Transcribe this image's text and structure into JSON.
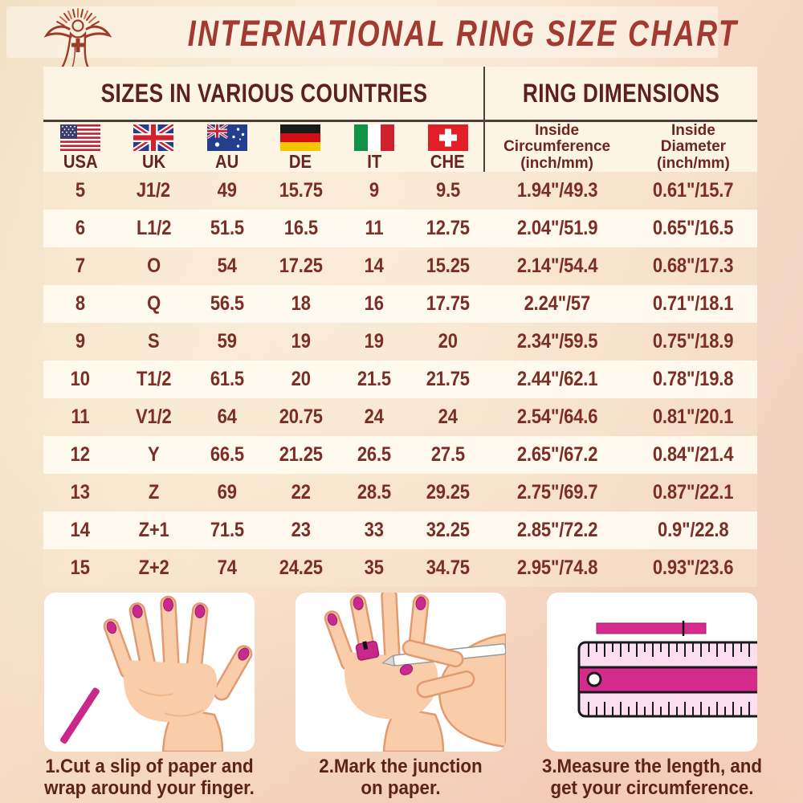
{
  "header": {
    "title": "INTERNATIONAL RING SIZE CHART",
    "logo_icon": "jesus-logo-icon"
  },
  "table": {
    "section_titles": {
      "countries": "SIZES IN VARIOUS COUNTRIES",
      "dimensions": "RING DIMENSIONS"
    },
    "columns": [
      {
        "key": "usa",
        "label": "USA",
        "flag": "usa-flag-icon"
      },
      {
        "key": "uk",
        "label": "UK",
        "flag": "uk-flag-icon"
      },
      {
        "key": "au",
        "label": "AU",
        "flag": "australia-flag-icon"
      },
      {
        "key": "de",
        "label": "DE",
        "flag": "germany-flag-icon"
      },
      {
        "key": "it",
        "label": "IT",
        "flag": "italy-flag-icon"
      },
      {
        "key": "che",
        "label": "CHE",
        "flag": "switzerland-flag-icon"
      },
      {
        "key": "inside_circumference",
        "label": "Inside Circumference (inch/mm)",
        "lines": [
          "Inside",
          "Circumference",
          "(inch/mm)"
        ]
      },
      {
        "key": "inside_diameter",
        "label": "Inside Diameter (inch/mm)",
        "lines": [
          "Inside",
          "Diameter",
          "(inch/mm)"
        ]
      }
    ],
    "rows": [
      [
        "5",
        "J1/2",
        "49",
        "15.75",
        "9",
        "9.5",
        "1.94\"/49.3",
        "0.61\"/15.7"
      ],
      [
        "6",
        "L1/2",
        "51.5",
        "16.5",
        "11",
        "12.75",
        "2.04\"/51.9",
        "0.65\"/16.5"
      ],
      [
        "7",
        "O",
        "54",
        "17.25",
        "14",
        "15.25",
        "2.14\"/54.4",
        "0.68\"/17.3"
      ],
      [
        "8",
        "Q",
        "56.5",
        "18",
        "16",
        "17.75",
        "2.24\"/57",
        "0.71\"/18.1"
      ],
      [
        "9",
        "S",
        "59",
        "19",
        "19",
        "20",
        "2.34\"/59.5",
        "0.75\"/18.9"
      ],
      [
        "10",
        "T1/2",
        "61.5",
        "20",
        "21.5",
        "21.75",
        "2.44\"/62.1",
        "0.78\"/19.8"
      ],
      [
        "11",
        "V1/2",
        "64",
        "20.75",
        "24",
        "24",
        "2.54\"/64.6",
        "0.81\"/20.1"
      ],
      [
        "12",
        "Y",
        "66.5",
        "21.25",
        "26.5",
        "27.5",
        "2.65\"/67.2",
        "0.84\"/21.4"
      ],
      [
        "13",
        "Z",
        "69",
        "22",
        "28.5",
        "29.25",
        "2.75\"/69.7",
        "0.87\"/22.1"
      ],
      [
        "14",
        "Z+1",
        "71.5",
        "23",
        "33",
        "32.25",
        "2.85\"/72.2",
        "0.9\"/22.8"
      ],
      [
        "15",
        "Z+2",
        "74",
        "24.25",
        "35",
        "34.75",
        "2.95\"/74.8",
        "0.93\"/23.6"
      ]
    ]
  },
  "instructions": [
    {
      "step": "1",
      "illustration": "hand-with-paper-strip-illustration",
      "caption_lines": [
        "1.Cut a slip of paper and",
        "wrap around your finger."
      ]
    },
    {
      "step": "2",
      "illustration": "hands-marking-paper-illustration",
      "caption_lines": [
        "2.Mark the junction",
        "on paper."
      ]
    },
    {
      "step": "3",
      "illustration": "ruler-measuring-illustration",
      "caption_lines": [
        "3.Measure the length, and",
        "get your circumference."
      ]
    }
  ],
  "colors": {
    "title_text": "#a23a31",
    "section_title_text": "#5d201e",
    "table_text": "#7b2d26",
    "caption_text": "#5c2318",
    "magenta_accent": "#d62a8c",
    "header_cream": "#fcf5e4",
    "background_top_left": "#f1e0c2",
    "background_bottom": "#f5cdb6"
  },
  "chart_data": {
    "type": "table",
    "title": "INTERNATIONAL RING SIZE CHART",
    "columns": [
      "USA",
      "UK",
      "AU",
      "DE",
      "IT",
      "CHE",
      "Inside Circumference (inch/mm)",
      "Inside Diameter (inch/mm)"
    ],
    "rows": [
      [
        "5",
        "J1/2",
        "49",
        "15.75",
        "9",
        "9.5",
        "1.94\"/49.3",
        "0.61\"/15.7"
      ],
      [
        "6",
        "L1/2",
        "51.5",
        "16.5",
        "11",
        "12.75",
        "2.04\"/51.9",
        "0.65\"/16.5"
      ],
      [
        "7",
        "O",
        "54",
        "17.25",
        "14",
        "15.25",
        "2.14\"/54.4",
        "0.68\"/17.3"
      ],
      [
        "8",
        "Q",
        "56.5",
        "18",
        "16",
        "17.75",
        "2.24\"/57",
        "0.71\"/18.1"
      ],
      [
        "9",
        "S",
        "59",
        "19",
        "19",
        "20",
        "2.34\"/59.5",
        "0.75\"/18.9"
      ],
      [
        "10",
        "T1/2",
        "61.5",
        "20",
        "21.5",
        "21.75",
        "2.44\"/62.1",
        "0.78\"/19.8"
      ],
      [
        "11",
        "V1/2",
        "64",
        "20.75",
        "24",
        "24",
        "2.54\"/64.6",
        "0.81\"/20.1"
      ],
      [
        "12",
        "Y",
        "66.5",
        "21.25",
        "26.5",
        "27.5",
        "2.65\"/67.2",
        "0.84\"/21.4"
      ],
      [
        "13",
        "Z",
        "69",
        "22",
        "28.5",
        "29.25",
        "2.75\"/69.7",
        "0.87\"/22.1"
      ],
      [
        "14",
        "Z+1",
        "71.5",
        "23",
        "33",
        "32.25",
        "2.85\"/72.2",
        "0.9\"/22.8"
      ],
      [
        "15",
        "Z+2",
        "74",
        "24.25",
        "35",
        "34.75",
        "2.95\"/74.8",
        "0.93\"/23.6"
      ]
    ]
  }
}
